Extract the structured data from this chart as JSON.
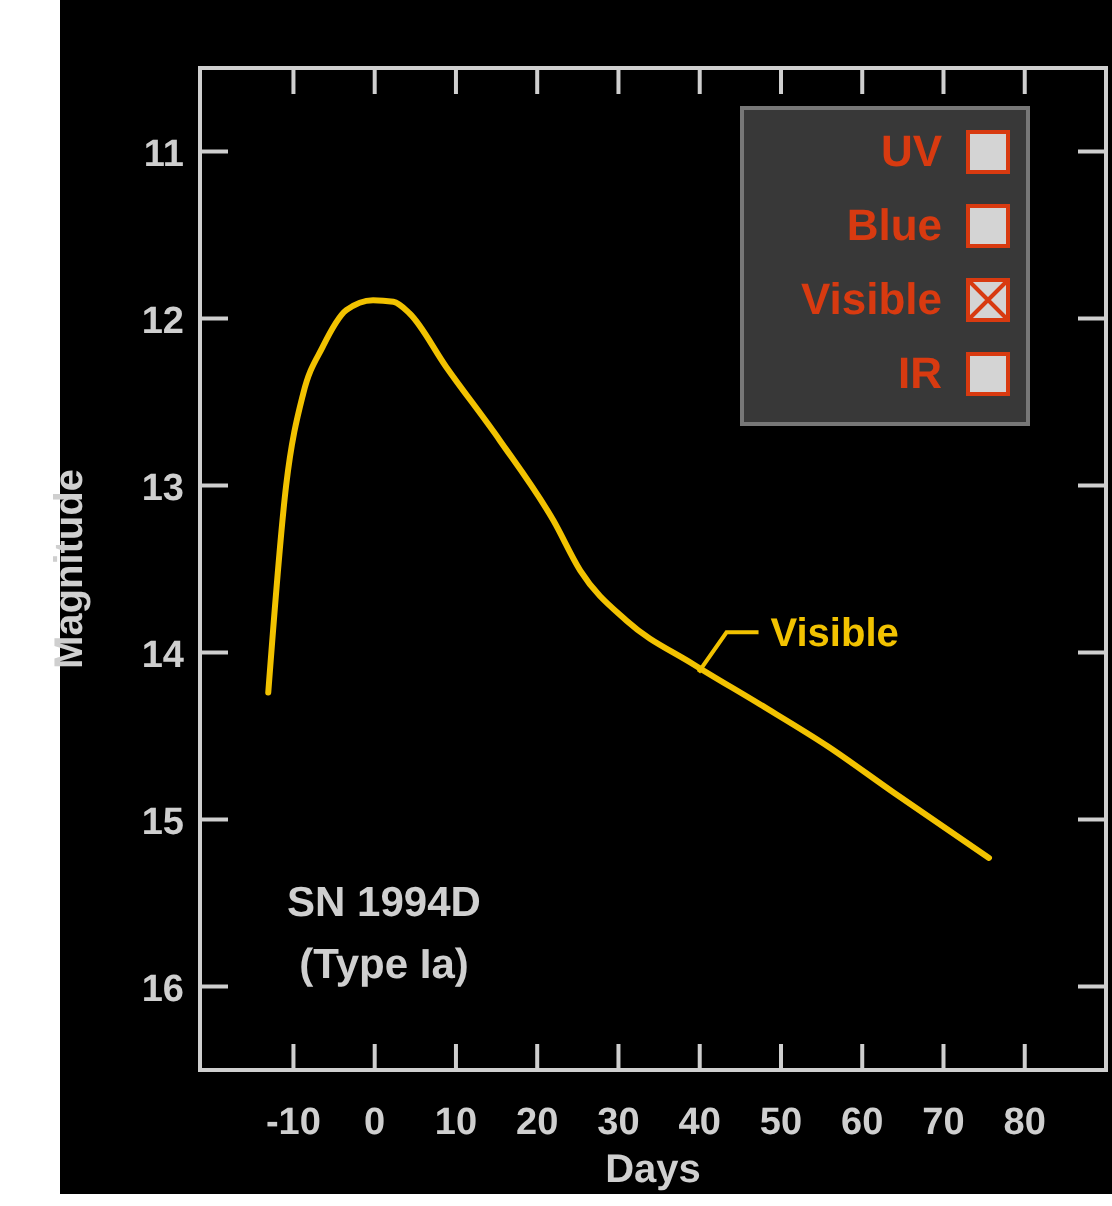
{
  "chart_data": {
    "type": "line",
    "xlabel": "Days",
    "ylabel": "Magnitude",
    "xlim": [
      -21.5,
      90
    ],
    "xticks": [
      -10,
      0,
      10,
      20,
      30,
      40,
      50,
      60,
      70,
      80
    ],
    "ylim": [
      16.5,
      10.5
    ],
    "yticks": [
      11,
      12,
      13,
      14,
      15,
      16
    ],
    "series": [
      {
        "name": "Visible",
        "color": "#f2c200",
        "x": [
          -13.1,
          -10.9,
          -8.8,
          -6.4,
          -3.5,
          -0.2,
          2.3,
          4.3,
          8.8,
          15.4,
          22.0,
          25.3,
          31.0,
          39.2,
          47.4,
          55.7,
          63.9,
          75.6
        ],
        "values": [
          14.24,
          13.0,
          12.45,
          12.17,
          11.95,
          11.89,
          11.9,
          11.97,
          12.29,
          12.73,
          13.21,
          13.51,
          13.81,
          14.07,
          14.31,
          14.56,
          14.84,
          15.23
        ]
      }
    ],
    "annotations": [
      "UV",
      "Blue",
      "Visible",
      "IR",
      "SN 1994D",
      "(Type Ia)"
    ],
    "grid": false,
    "legend": "right",
    "marker": "none",
    "line_style": "solid"
  }
}
